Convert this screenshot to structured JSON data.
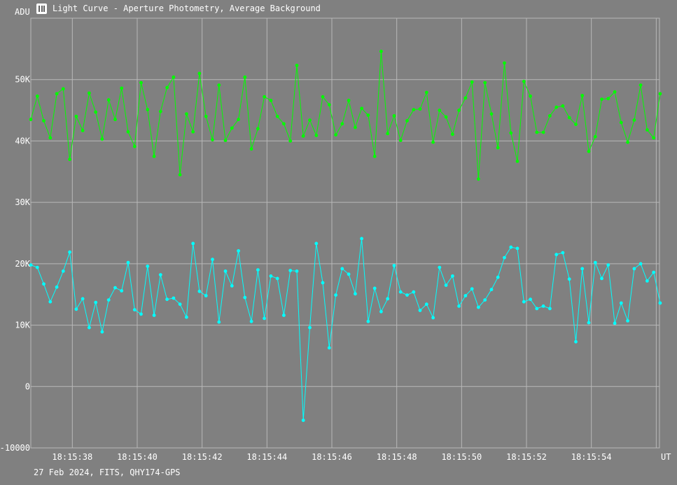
{
  "window": {
    "title": "Light Curve - Aperture Photometry, Average Background",
    "icon": "light-curve-app-icon"
  },
  "footer": {
    "text": "27 Feb 2024, FITS, QHY174-GPS"
  },
  "chart_data": {
    "type": "line",
    "ylabel": "ADU",
    "xlabel": "UT",
    "ylim": [
      -10000,
      60000
    ],
    "yticks": [
      -10000,
      0,
      10000,
      20000,
      30000,
      40000,
      50000
    ],
    "ytick_labels": [
      "-10000",
      "0",
      "10K",
      "20K",
      "30K",
      "40K",
      "50K"
    ],
    "xlim": [
      "18:15:36.720",
      "18:15:56.100"
    ],
    "xticks": [
      "18:15:38",
      "18:15:40",
      "18:15:42",
      "18:15:44",
      "18:15:46",
      "18:15:48",
      "18:15:50",
      "18:15:52",
      "18:15:54",
      "18:15:56"
    ],
    "xtick_labels": [
      "18:15:38",
      "18:15:40",
      "18:15:42",
      "18:15:44",
      "18:15:46",
      "18:15:48",
      "18:15:50",
      "18:15:52",
      "18:15:54",
      ""
    ],
    "grid": true,
    "start_time": "18:15:36.720",
    "sample_interval_s": 0.2,
    "series": [
      {
        "color": "#00ff00",
        "values": [
          43500,
          47300,
          43300,
          40500,
          47700,
          48500,
          37000,
          44000,
          41700,
          47800,
          44700,
          40300,
          46700,
          43500,
          48600,
          41500,
          39100,
          49500,
          45100,
          37500,
          44800,
          48700,
          50400,
          34500,
          44400,
          41500,
          51000,
          44000,
          40200,
          49100,
          40100,
          42100,
          43500,
          50400,
          38700,
          42000,
          47200,
          46600,
          44000,
          42800,
          40000,
          52300,
          40800,
          43400,
          40900,
          47200,
          45900,
          41000,
          42800,
          46600,
          42200,
          45300,
          44200,
          37500,
          54600,
          41200,
          44100,
          40100,
          43300,
          45100,
          45200,
          47900,
          39800,
          45000,
          43900,
          41100,
          45000,
          47000,
          49600,
          33800,
          49500,
          44400,
          38900,
          52700,
          41300,
          36700,
          49700,
          47300,
          41400,
          41400,
          44100,
          45500,
          45700,
          43800,
          42700,
          47400,
          38300,
          40700,
          46800,
          46900,
          48000,
          43000,
          39800,
          43400,
          49100,
          41800,
          40500,
          47700
        ]
      },
      {
        "color": "#00ffff",
        "values": [
          19800,
          19400,
          16700,
          13800,
          16200,
          18800,
          21900,
          12600,
          14300,
          9600,
          13700,
          8900,
          14100,
          16100,
          15600,
          20200,
          12500,
          11800,
          19600,
          11600,
          18200,
          14200,
          14400,
          13400,
          11300,
          23300,
          15500,
          14800,
          20700,
          10500,
          18800,
          16400,
          22100,
          14500,
          10600,
          19000,
          11100,
          18000,
          17600,
          11600,
          18900,
          18800,
          -5500,
          9600,
          23300,
          16900,
          6300,
          14900,
          19200,
          18300,
          15100,
          24100,
          10600,
          16000,
          12200,
          14300,
          19700,
          15400,
          14900,
          15400,
          12400,
          13400,
          11200,
          19400,
          16500,
          18000,
          13100,
          14800,
          15900,
          12900,
          14100,
          15800,
          17800,
          21000,
          22700,
          22500,
          13800,
          14200,
          12700,
          13100,
          12700,
          21500,
          21800,
          17500,
          7300,
          19200,
          10400,
          20200,
          17600,
          19800,
          10300,
          13600,
          10700,
          19200,
          20000,
          17200,
          18600,
          13600
        ]
      }
    ]
  }
}
